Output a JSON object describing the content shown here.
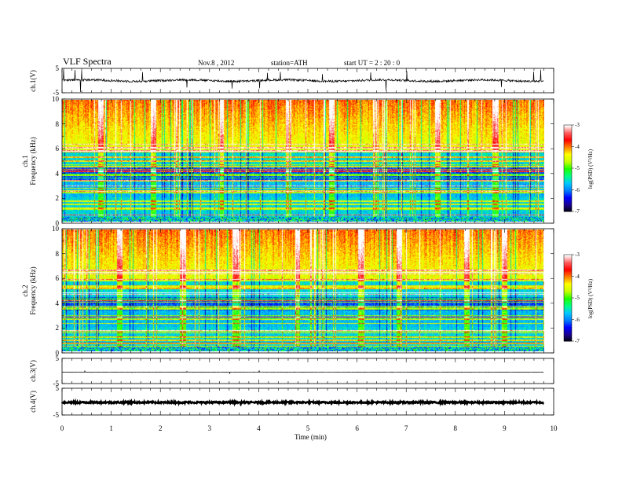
{
  "header": {
    "title": "VLF  Spectra",
    "date": "Nov.8  , 2012",
    "station": "station=ATH",
    "start": "start  UT  =   2  : 20 : 0"
  },
  "chart_data": {
    "type": "heatmap",
    "x_axis": {
      "label": "Time  (min)",
      "range": [
        0,
        10
      ],
      "ticks": [
        "0",
        "1",
        "2",
        "3",
        "4",
        "5",
        "6",
        "7",
        "8",
        "9",
        "10"
      ]
    },
    "data_end_min": 9.8,
    "panels": [
      {
        "id": "ch1-wave",
        "type": "line",
        "ylabel": "ch.1(V)",
        "yticks": [
          "5",
          "-5"
        ],
        "ylim": [
          -5,
          5
        ],
        "level": 0.0,
        "noise": "high"
      },
      {
        "id": "ch1-spec",
        "type": "heatmap",
        "ylabel": "ch.1\nFrequency  (kHz)",
        "yticks": [
          "10",
          "8",
          "6",
          "4",
          "2",
          "0"
        ],
        "ylim": [
          0,
          10
        ],
        "colorbar": {
          "label": "log(PSD) (V²/Hz)",
          "ticks": [
            "-3",
            "-4",
            "-5",
            "-6",
            "-7"
          ],
          "range": [
            -7,
            -3
          ]
        }
      },
      {
        "id": "ch2-spec",
        "type": "heatmap",
        "ylabel": "ch.2\nFrequency  (kHz)",
        "yticks": [
          "10",
          "8",
          "6",
          "4",
          "2",
          "0"
        ],
        "ylim": [
          0,
          10
        ],
        "colorbar": {
          "label": "log(PSD) (V²/Hz)",
          "ticks": [
            "-3",
            "-4",
            "-5",
            "-6",
            "-7"
          ],
          "range": [
            -7,
            -3
          ]
        }
      },
      {
        "id": "ch3-wave",
        "type": "line",
        "ylabel": "ch.3(V)",
        "yticks": [
          "5",
          "-5"
        ],
        "ylim": [
          -5,
          5
        ],
        "level": -0.5,
        "noise": "low"
      },
      {
        "id": "ch4-wave",
        "type": "line",
        "ylabel": "ch.4(V)",
        "yticks": [
          "5",
          "-5"
        ],
        "ylim": [
          -5,
          5
        ],
        "level": -0.3,
        "noise": "band"
      }
    ],
    "colormap": [
      "#000000",
      "#1a0090",
      "#0000ff",
      "#0080ff",
      "#00c8ff",
      "#00ff80",
      "#20ff00",
      "#c8ff00",
      "#ffff00",
      "#ff8000",
      "#ff0000",
      "#ff6060",
      "#ffffff"
    ]
  }
}
